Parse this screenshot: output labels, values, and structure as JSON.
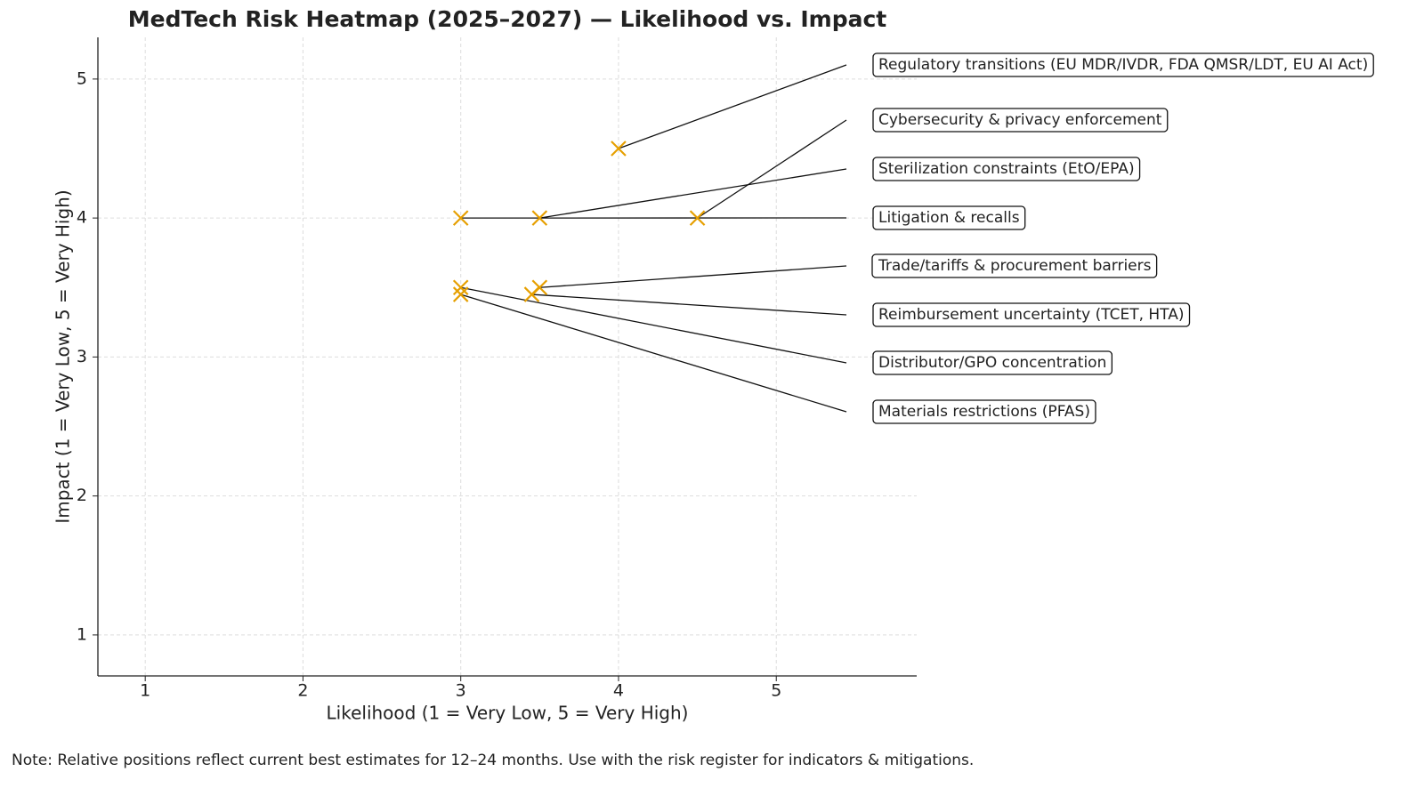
{
  "chart_data": {
    "type": "scatter",
    "title": "MedTech Risk Heatmap (2025–2027) — Likelihood vs. Impact",
    "x_label": "Likelihood (1 = Very Low, 5 = Very High)",
    "y_label": "Impact (1 = Very Low, 5 = Very High)",
    "point_labels": [
      "Regulatory transitions (EU MDR/IVDR, FDA QMSR/LDT, EU AI Act)",
      "Cybersecurity & privacy enforcement",
      "Sterilization constraints (EtO/EPA)",
      "Litigation & recalls",
      "Trade/tariffs & procurement barriers",
      "Reimbursement uncertainty (TCET, HTA)",
      "Distributor/GPO concentration",
      "Materials restrictions (PFAS)"
    ],
    "x": [
      4,
      4.5,
      3.5,
      3,
      3.5,
      3.45,
      3,
      3
    ],
    "y": [
      4.5,
      4,
      4,
      4,
      3.5,
      3.45,
      3.5,
      3.45
    ],
    "color": "#e69f00",
    "xlim": [
      0.7,
      5.89
    ],
    "ylim": [
      0.705,
      5.3
    ],
    "xticks": [
      1,
      2,
      3,
      4,
      5
    ],
    "yticks": [
      1,
      2,
      3,
      4,
      5
    ],
    "grid": true
  },
  "note": "Note: Relative positions reflect current best estimates for 12–24 months. Use with the risk register for indicators & mitigations."
}
